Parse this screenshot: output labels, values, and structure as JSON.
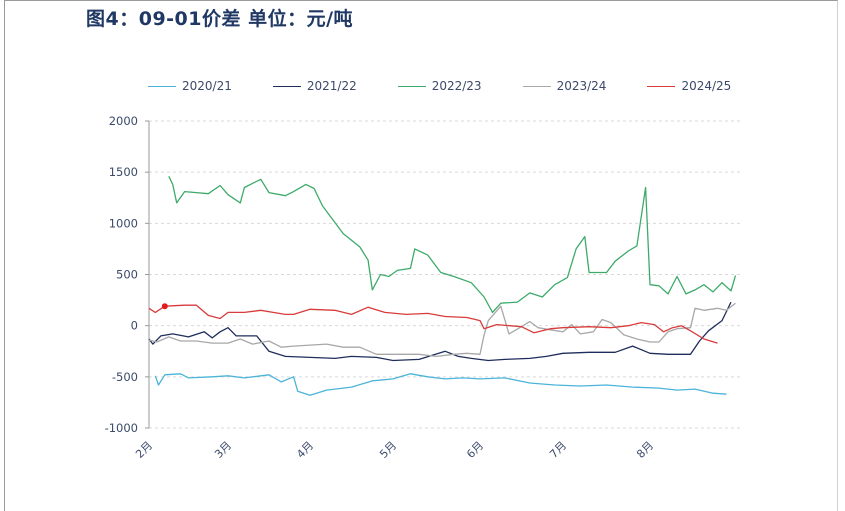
{
  "title": "图4：09-01价差 单位：元/吨",
  "legend": [
    {
      "label": "2020/21",
      "color": "#4bb4d8"
    },
    {
      "label": "2021/22",
      "color": "#1f2d5a"
    },
    {
      "label": "2022/23",
      "color": "#3daa6a"
    },
    {
      "label": "2023/24",
      "color": "#a8a8a8"
    },
    {
      "label": "2024/25",
      "color": "#d93b3b"
    }
  ],
  "yaxis": {
    "ticks": [
      "2000",
      "1500",
      "1000",
      "500",
      "0",
      "-500",
      "-1000"
    ]
  },
  "xaxis": {
    "ticks": [
      "2月",
      "3月",
      "4月",
      "5月",
      "6月",
      "7月",
      "8月"
    ]
  },
  "chart_data": {
    "type": "line",
    "title": "图4：09-01价差 单位：元/吨",
    "xlabel": "",
    "ylabel": "元/吨",
    "ylim": [
      -1000,
      2000
    ],
    "grid": "horizontal dashed",
    "legend_position": "top",
    "x_categories": [
      "2月",
      "3月",
      "4月",
      "5月",
      "6月",
      "7月",
      "8月"
    ],
    "x_note": "x values are fractional months (2.0 = early Feb, 8.9 = late Aug)",
    "series": [
      {
        "name": "2020/21",
        "color": "#4bb4d8",
        "points": [
          [
            2.08,
            -490
          ],
          [
            2.12,
            -580
          ],
          [
            2.2,
            -480
          ],
          [
            2.4,
            -470
          ],
          [
            2.5,
            -510
          ],
          [
            2.8,
            -500
          ],
          [
            3.0,
            -490
          ],
          [
            3.2,
            -510
          ],
          [
            3.5,
            -480
          ],
          [
            3.65,
            -550
          ],
          [
            3.8,
            -500
          ],
          [
            3.85,
            -640
          ],
          [
            4.0,
            -680
          ],
          [
            4.2,
            -630
          ],
          [
            4.5,
            -600
          ],
          [
            4.75,
            -540
          ],
          [
            5.0,
            -520
          ],
          [
            5.2,
            -470
          ],
          [
            5.4,
            -500
          ],
          [
            5.6,
            -520
          ],
          [
            5.8,
            -510
          ],
          [
            6.0,
            -520
          ],
          [
            6.3,
            -510
          ],
          [
            6.6,
            -560
          ],
          [
            6.9,
            -580
          ],
          [
            7.2,
            -590
          ],
          [
            7.5,
            -580
          ],
          [
            7.8,
            -600
          ],
          [
            8.1,
            -610
          ],
          [
            8.3,
            -630
          ],
          [
            8.5,
            -620
          ],
          [
            8.7,
            -660
          ],
          [
            8.85,
            -670
          ]
        ]
      },
      {
        "name": "2021/22",
        "color": "#1f2d5a",
        "points": [
          [
            2.0,
            -130
          ],
          [
            2.05,
            -180
          ],
          [
            2.15,
            -100
          ],
          [
            2.3,
            -80
          ],
          [
            2.5,
            -110
          ],
          [
            2.7,
            -60
          ],
          [
            2.8,
            -120
          ],
          [
            2.9,
            -60
          ],
          [
            3.0,
            -20
          ],
          [
            3.1,
            -100
          ],
          [
            3.35,
            -100
          ],
          [
            3.5,
            -250
          ],
          [
            3.7,
            -300
          ],
          [
            4.0,
            -310
          ],
          [
            4.3,
            -320
          ],
          [
            4.5,
            -300
          ],
          [
            4.8,
            -310
          ],
          [
            5.0,
            -340
          ],
          [
            5.3,
            -330
          ],
          [
            5.6,
            -250
          ],
          [
            5.75,
            -300
          ],
          [
            5.9,
            -320
          ],
          [
            6.1,
            -340
          ],
          [
            6.3,
            -330
          ],
          [
            6.6,
            -320
          ],
          [
            6.8,
            -300
          ],
          [
            7.0,
            -270
          ],
          [
            7.3,
            -260
          ],
          [
            7.6,
            -260
          ],
          [
            7.8,
            -200
          ],
          [
            8.0,
            -270
          ],
          [
            8.2,
            -280
          ],
          [
            8.45,
            -280
          ],
          [
            8.55,
            -150
          ],
          [
            8.65,
            -50
          ],
          [
            8.8,
            50
          ],
          [
            8.9,
            230
          ]
        ]
      },
      {
        "name": "2022/23",
        "color": "#3daa6a",
        "points": [
          [
            2.25,
            1460
          ],
          [
            2.3,
            1380
          ],
          [
            2.35,
            1200
          ],
          [
            2.45,
            1310
          ],
          [
            2.6,
            1300
          ],
          [
            2.75,
            1290
          ],
          [
            2.9,
            1370
          ],
          [
            3.0,
            1280
          ],
          [
            3.15,
            1200
          ],
          [
            3.2,
            1350
          ],
          [
            3.4,
            1430
          ],
          [
            3.5,
            1300
          ],
          [
            3.7,
            1270
          ],
          [
            3.8,
            1310
          ],
          [
            3.95,
            1380
          ],
          [
            4.05,
            1340
          ],
          [
            4.15,
            1170
          ],
          [
            4.4,
            900
          ],
          [
            4.6,
            770
          ],
          [
            4.7,
            640
          ],
          [
            4.75,
            350
          ],
          [
            4.85,
            500
          ],
          [
            4.95,
            480
          ],
          [
            5.05,
            540
          ],
          [
            5.2,
            560
          ],
          [
            5.25,
            750
          ],
          [
            5.4,
            690
          ],
          [
            5.55,
            520
          ],
          [
            5.7,
            480
          ],
          [
            5.9,
            420
          ],
          [
            6.05,
            280
          ],
          [
            6.15,
            130
          ],
          [
            6.25,
            220
          ],
          [
            6.45,
            230
          ],
          [
            6.6,
            320
          ],
          [
            6.75,
            280
          ],
          [
            6.9,
            400
          ],
          [
            7.05,
            470
          ],
          [
            7.15,
            750
          ],
          [
            7.25,
            870
          ],
          [
            7.3,
            520
          ],
          [
            7.5,
            520
          ],
          [
            7.6,
            630
          ],
          [
            7.75,
            730
          ],
          [
            7.85,
            780
          ],
          [
            7.95,
            1350
          ],
          [
            8.05,
            1100
          ],
          [
            8.2,
            900
          ],
          [
            8.3,
            700
          ],
          [
            8.4,
            340
          ],
          [
            8.5,
            900
          ],
          [
            8.6,
            120
          ],
          [
            8.7,
            770
          ],
          [
            8.8,
            990
          ],
          [
            8.9,
            620
          ],
          [
            8.95,
            320
          ]
        ],
        "tail_points": [
          [
            8.0,
            400
          ],
          [
            8.1,
            390
          ],
          [
            8.2,
            310
          ],
          [
            8.3,
            480
          ],
          [
            8.4,
            310
          ],
          [
            8.5,
            350
          ],
          [
            8.6,
            400
          ],
          [
            8.7,
            330
          ],
          [
            8.8,
            420
          ],
          [
            8.9,
            340
          ],
          [
            8.95,
            490
          ]
        ]
      },
      {
        "name": "2023/24",
        "color": "#a8a8a8",
        "points": [
          [
            2.0,
            -140
          ],
          [
            2.1,
            -160
          ],
          [
            2.25,
            -110
          ],
          [
            2.4,
            -150
          ],
          [
            2.6,
            -150
          ],
          [
            2.8,
            -170
          ],
          [
            3.0,
            -170
          ],
          [
            3.15,
            -130
          ],
          [
            3.3,
            -180
          ],
          [
            3.5,
            -150
          ],
          [
            3.65,
            -210
          ],
          [
            3.8,
            -200
          ],
          [
            4.0,
            -190
          ],
          [
            4.2,
            -180
          ],
          [
            4.4,
            -210
          ],
          [
            4.6,
            -210
          ],
          [
            4.8,
            -280
          ],
          [
            5.0,
            -280
          ],
          [
            5.3,
            -280
          ],
          [
            5.5,
            -300
          ],
          [
            5.7,
            -280
          ],
          [
            5.85,
            -270
          ],
          [
            6.0,
            -280
          ],
          [
            6.05,
            -90
          ],
          [
            6.1,
            50
          ],
          [
            6.25,
            190
          ],
          [
            6.35,
            -80
          ],
          [
            6.5,
            -10
          ],
          [
            6.6,
            40
          ],
          [
            6.7,
            -20
          ],
          [
            6.85,
            -40
          ],
          [
            7.0,
            -60
          ],
          [
            7.1,
            10
          ],
          [
            7.2,
            -80
          ],
          [
            7.35,
            -60
          ],
          [
            7.45,
            60
          ],
          [
            7.55,
            30
          ],
          [
            7.7,
            -90
          ],
          [
            7.85,
            -130
          ],
          [
            8.0,
            -160
          ],
          [
            8.1,
            -160
          ],
          [
            8.2,
            -60
          ],
          [
            8.3,
            -30
          ],
          [
            8.45,
            -20
          ],
          [
            8.5,
            170
          ],
          [
            8.6,
            150
          ],
          [
            8.75,
            170
          ],
          [
            8.85,
            150
          ],
          [
            8.95,
            220
          ]
        ]
      },
      {
        "name": "2024/25",
        "color": "#d93b3b",
        "points": [
          [
            2.0,
            170
          ],
          [
            2.08,
            130
          ],
          [
            2.2,
            190
          ],
          [
            2.45,
            200
          ],
          [
            2.6,
            200
          ],
          [
            2.75,
            100
          ],
          [
            2.9,
            70
          ],
          [
            3.0,
            130
          ],
          [
            3.2,
            130
          ],
          [
            3.4,
            150
          ],
          [
            3.55,
            130
          ],
          [
            3.7,
            110
          ],
          [
            3.8,
            110
          ],
          [
            4.0,
            160
          ],
          [
            4.3,
            150
          ],
          [
            4.5,
            110
          ],
          [
            4.7,
            180
          ],
          [
            4.9,
            130
          ],
          [
            5.15,
            110
          ],
          [
            5.4,
            120
          ],
          [
            5.6,
            90
          ],
          [
            5.85,
            80
          ],
          [
            6.0,
            50
          ],
          [
            6.05,
            -30
          ],
          [
            6.2,
            10
          ],
          [
            6.5,
            -10
          ],
          [
            6.65,
            -70
          ],
          [
            6.85,
            -30
          ],
          [
            7.0,
            -20
          ],
          [
            7.3,
            -10
          ],
          [
            7.55,
            -20
          ],
          [
            7.75,
            0
          ],
          [
            7.9,
            30
          ],
          [
            8.05,
            10
          ],
          [
            8.15,
            -60
          ],
          [
            8.25,
            -20
          ],
          [
            8.35,
            0
          ],
          [
            8.45,
            -50
          ],
          [
            8.6,
            -130
          ],
          [
            8.75,
            -170
          ]
        ],
        "marker": {
          "x": 2.2,
          "y": 190
        }
      }
    ]
  }
}
